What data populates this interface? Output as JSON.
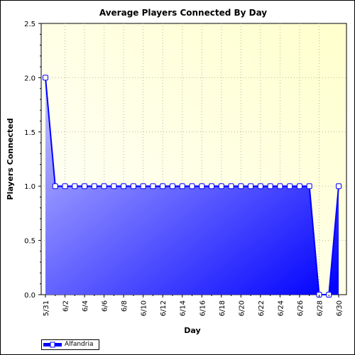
{
  "chart_data": {
    "type": "area",
    "title": "Average Players Connected By Day",
    "xlabel": "Day",
    "ylabel": "Players Connected",
    "x": [
      "5/31",
      "6/1",
      "6/2",
      "6/3",
      "6/4",
      "6/5",
      "6/6",
      "6/7",
      "6/8",
      "6/9",
      "6/10",
      "6/11",
      "6/12",
      "6/13",
      "6/14",
      "6/15",
      "6/16",
      "6/17",
      "6/18",
      "6/19",
      "6/20",
      "6/21",
      "6/22",
      "6/23",
      "6/24",
      "6/25",
      "6/26",
      "6/27",
      "6/28",
      "6/29",
      "6/30"
    ],
    "xtick_labels": [
      "5/31",
      "6/2",
      "6/4",
      "6/6",
      "6/8",
      "6/10",
      "6/12",
      "6/14",
      "6/16",
      "6/18",
      "6/20",
      "6/22",
      "6/24",
      "6/26",
      "6/28",
      "6/30"
    ],
    "ylim": [
      0,
      2.5
    ],
    "yticks": [
      "0.0",
      "0.5",
      "1.0",
      "1.5",
      "2.0",
      "2.5"
    ],
    "grid": true,
    "legend_position": "bottom-left",
    "series": [
      {
        "name": "Alfandria",
        "values": [
          2,
          1,
          1,
          1,
          1,
          1,
          1,
          1,
          1,
          1,
          1,
          1,
          1,
          1,
          1,
          1,
          1,
          1,
          1,
          1,
          1,
          1,
          1,
          1,
          1,
          1,
          1,
          1,
          0,
          0,
          1
        ],
        "color": "#0000ff"
      }
    ],
    "colors": {
      "plot_background_light": "#ffffff",
      "plot_background_tint": "#ffffcc",
      "area_light": "#c6c6ff",
      "area_dark": "#0000ff"
    }
  }
}
